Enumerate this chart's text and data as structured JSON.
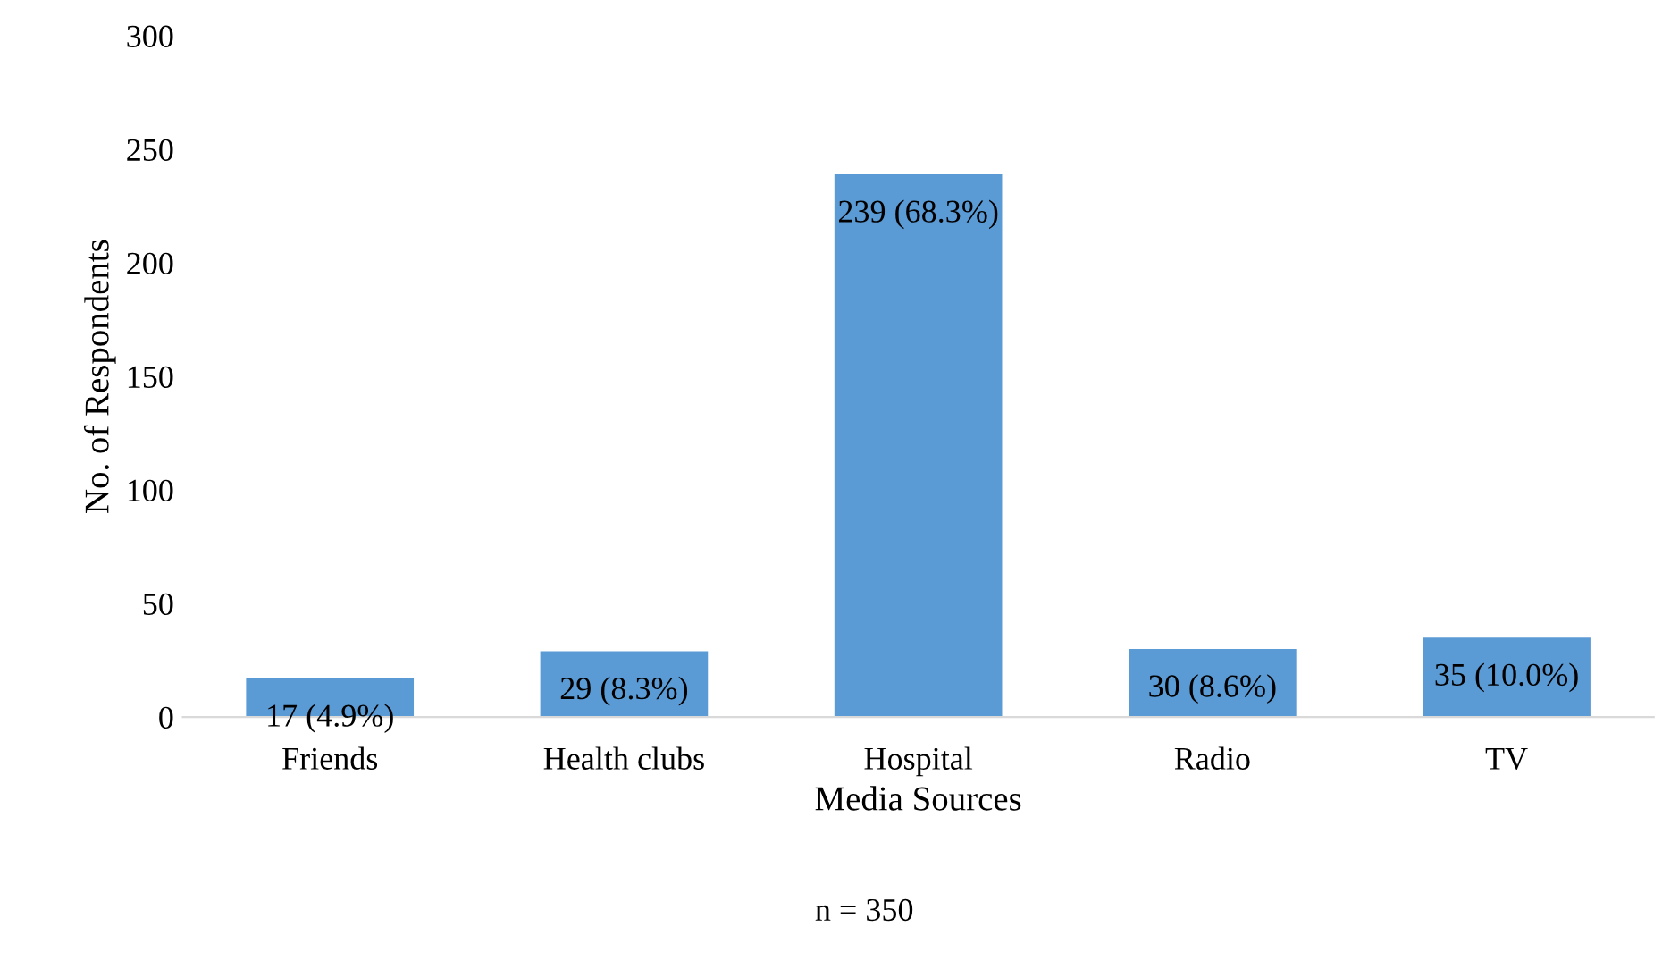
{
  "chart_data": {
    "type": "bar",
    "xlabel": "Media Sources",
    "ylabel": "No. of Respondents",
    "categories": [
      "Friends",
      "Health clubs",
      "Hospital",
      "Radio",
      "TV"
    ],
    "values": [
      17,
      29,
      239,
      30,
      35
    ],
    "color": "#5b9bd5",
    "value_labels": [
      "17 (4.9%)",
      "29 (8.3%)",
      "239 (68.3%)",
      "30 (8.6%)",
      "35 (10.0%)"
    ],
    "ylim": [
      0,
      300
    ],
    "yticks": [
      0,
      50,
      100,
      150,
      200,
      250,
      300
    ],
    "grid": false,
    "legend": false,
    "annotations": [
      "n = 350"
    ]
  }
}
